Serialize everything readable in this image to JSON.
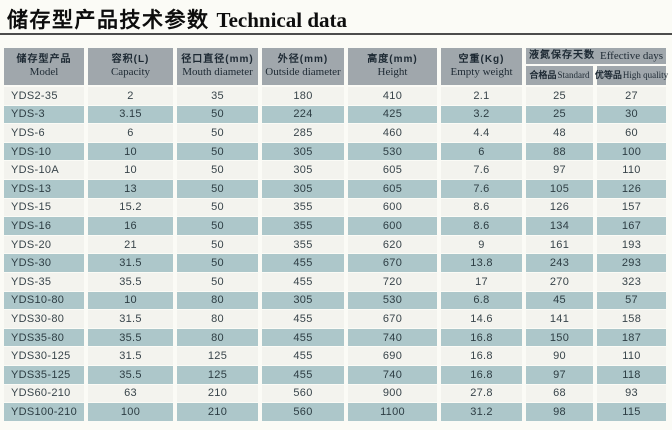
{
  "title": {
    "chinese": "储存型产品技术参数",
    "english": "Technical data"
  },
  "table": {
    "headers": [
      {
        "cn": "储存型产品",
        "en": "Model"
      },
      {
        "cn": "容积(L)",
        "en": "Capacity"
      },
      {
        "cn": "径口直径(mm)",
        "en": "Mouth diameter"
      },
      {
        "cn": "外径(mm)",
        "en": "Outside diameter"
      },
      {
        "cn": "高度(mm)",
        "en": "Height"
      },
      {
        "cn": "空重(Kg)",
        "en": "Empty weight"
      }
    ],
    "group_header": {
      "cn": "液氮保存天数",
      "en": "Effective days"
    },
    "sub_headers": [
      {
        "cn": "合格品",
        "en": "Standard"
      },
      {
        "cn": "优等品",
        "en": "High quality"
      }
    ],
    "rows": [
      {
        "model": "YDS2-35",
        "capacity": "2",
        "mouth": "35",
        "outside": "180",
        "height": "410",
        "empty": "2.1",
        "standard": "25",
        "high": "27"
      },
      {
        "model": "YDS-3",
        "capacity": "3.15",
        "mouth": "50",
        "outside": "224",
        "height": "425",
        "empty": "3.2",
        "standard": "25",
        "high": "30"
      },
      {
        "model": "YDS-6",
        "capacity": "6",
        "mouth": "50",
        "outside": "285",
        "height": "460",
        "empty": "4.4",
        "standard": "48",
        "high": "60"
      },
      {
        "model": "YDS-10",
        "capacity": "10",
        "mouth": "50",
        "outside": "305",
        "height": "530",
        "empty": "6",
        "standard": "88",
        "high": "100"
      },
      {
        "model": "YDS-10A",
        "capacity": "10",
        "mouth": "50",
        "outside": "305",
        "height": "605",
        "empty": "7.6",
        "standard": "97",
        "high": "110"
      },
      {
        "model": "YDS-13",
        "capacity": "13",
        "mouth": "50",
        "outside": "305",
        "height": "605",
        "empty": "7.6",
        "standard": "105",
        "high": "126"
      },
      {
        "model": "YDS-15",
        "capacity": "15.2",
        "mouth": "50",
        "outside": "355",
        "height": "600",
        "empty": "8.6",
        "standard": "126",
        "high": "157"
      },
      {
        "model": "YDS-16",
        "capacity": "16",
        "mouth": "50",
        "outside": "355",
        "height": "600",
        "empty": "8.6",
        "standard": "134",
        "high": "167"
      },
      {
        "model": "YDS-20",
        "capacity": "21",
        "mouth": "50",
        "outside": "355",
        "height": "620",
        "empty": "9",
        "standard": "161",
        "high": "193"
      },
      {
        "model": "YDS-30",
        "capacity": "31.5",
        "mouth": "50",
        "outside": "455",
        "height": "670",
        "empty": "13.8",
        "standard": "243",
        "high": "293"
      },
      {
        "model": "YDS-35",
        "capacity": "35.5",
        "mouth": "50",
        "outside": "455",
        "height": "720",
        "empty": "17",
        "standard": "270",
        "high": "323"
      },
      {
        "model": "YDS10-80",
        "capacity": "10",
        "mouth": "80",
        "outside": "305",
        "height": "530",
        "empty": "6.8",
        "standard": "45",
        "high": "57"
      },
      {
        "model": "YDS30-80",
        "capacity": "31.5",
        "mouth": "80",
        "outside": "455",
        "height": "670",
        "empty": "14.6",
        "standard": "141",
        "high": "158"
      },
      {
        "model": "YDS35-80",
        "capacity": "35.5",
        "mouth": "80",
        "outside": "455",
        "height": "740",
        "empty": "16.8",
        "standard": "150",
        "high": "187"
      },
      {
        "model": "YDS30-125",
        "capacity": "31.5",
        "mouth": "125",
        "outside": "455",
        "height": "690",
        "empty": "16.8",
        "standard": "90",
        "high": "110"
      },
      {
        "model": "YDS35-125",
        "capacity": "35.5",
        "mouth": "125",
        "outside": "455",
        "height": "740",
        "empty": "16.8",
        "standard": "97",
        "high": "118"
      },
      {
        "model": "YDS60-210",
        "capacity": "63",
        "mouth": "210",
        "outside": "560",
        "height": "900",
        "empty": "27.8",
        "standard": "68",
        "high": "93"
      },
      {
        "model": "YDS100-210",
        "capacity": "100",
        "mouth": "210",
        "outside": "560",
        "height": "1100",
        "empty": "31.2",
        "standard": "98",
        "high": "115"
      }
    ]
  },
  "colors": {
    "header_bg": "#a0a7ac",
    "row_teal": "#adc7ca",
    "row_light": "#f3f3ee",
    "page_bg": "#fbfbf6",
    "text": "#38444a"
  }
}
